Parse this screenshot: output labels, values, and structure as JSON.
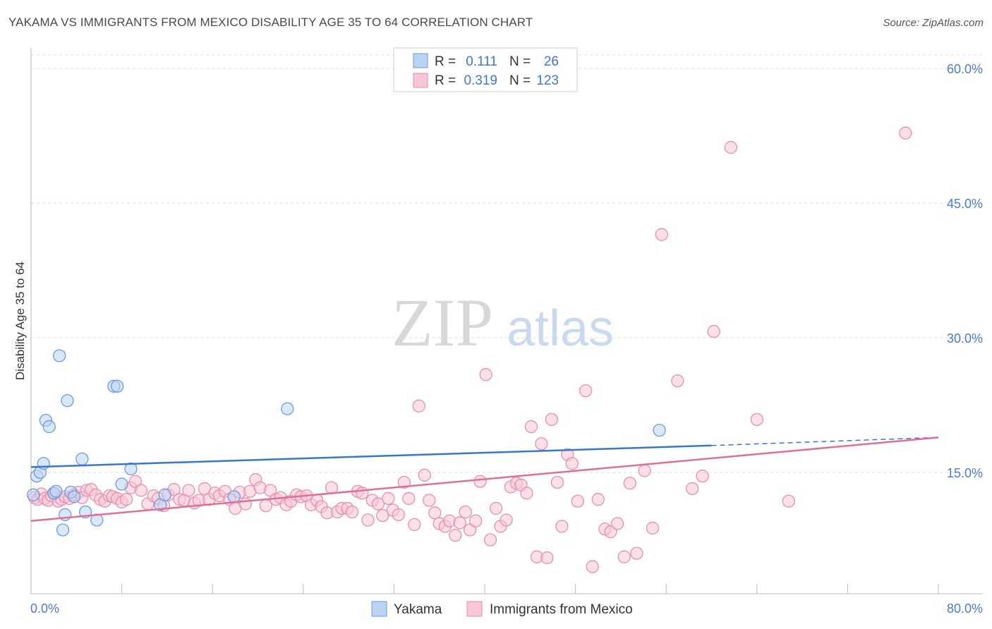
{
  "title": "YAKAMA VS IMMIGRANTS FROM MEXICO DISABILITY AGE 35 TO 64 CORRELATION CHART",
  "source": "Source: ZipAtlas.com",
  "watermark": {
    "zip": "ZIP",
    "atlas": "atlas"
  },
  "legend_top": [
    {
      "r_label": "R =",
      "r_value": "0.111",
      "n_label": "N =",
      "n_value": "26"
    },
    {
      "r_label": "R =",
      "r_value": "0.319",
      "n_label": "N =",
      "n_value": "123"
    }
  ],
  "legend_bottom": [
    "Yakama",
    "Immigrants from Mexico"
  ],
  "colors": {
    "yakama_fill": "#bcd4f4",
    "yakama_stroke": "#6d9bd8",
    "yakama_line": "#3a76cc",
    "mexico_fill": "#f8c6d6",
    "mexico_stroke": "#e58fae",
    "mexico_line": "#e06f97",
    "tick_label": "#4a7cc7",
    "grid": "#dddddd"
  },
  "chart_data": {
    "type": "scatter",
    "title": "YAKAMA VS IMMIGRANTS FROM MEXICO DISABILITY AGE 35 TO 64 CORRELATION CHART",
    "xlabel": "",
    "ylabel": "Disability Age 35 to 64",
    "xlim": [
      0,
      80
    ],
    "ylim": [
      0,
      61
    ],
    "x_tick_labels": [
      "0.0%",
      "80.0%"
    ],
    "y_ticks": [
      15,
      30,
      45,
      60
    ],
    "y_tick_labels": [
      "15.0%",
      "30.0%",
      "45.0%",
      "60.0%"
    ],
    "grid": true,
    "legend_position": "top-center",
    "series": [
      {
        "name": "Yakama",
        "r": 0.111,
        "n": 26,
        "trend": {
          "x0": 0,
          "y0": 15.6,
          "x1": 60,
          "y1": 18.0,
          "dashed_to_x": 80,
          "dashed_to_y": 18.9
        },
        "points": [
          [
            0.2,
            12.5
          ],
          [
            0.5,
            14.6
          ],
          [
            0.8,
            15.0
          ],
          [
            1.1,
            16.0
          ],
          [
            1.3,
            20.8
          ],
          [
            1.6,
            20.1
          ],
          [
            2.0,
            12.7
          ],
          [
            2.2,
            12.9
          ],
          [
            2.5,
            28.0
          ],
          [
            2.8,
            8.6
          ],
          [
            3.0,
            10.3
          ],
          [
            3.2,
            23.0
          ],
          [
            3.5,
            12.8
          ],
          [
            3.8,
            12.3
          ],
          [
            4.5,
            16.5
          ],
          [
            4.8,
            10.6
          ],
          [
            5.8,
            9.7
          ],
          [
            7.3,
            24.6
          ],
          [
            7.6,
            24.6
          ],
          [
            8.0,
            13.7
          ],
          [
            8.8,
            15.4
          ],
          [
            11.4,
            11.4
          ],
          [
            11.8,
            12.5
          ],
          [
            17.9,
            12.3
          ],
          [
            22.6,
            22.1
          ],
          [
            55.4,
            19.7
          ]
        ]
      },
      {
        "name": "Immigrants from Mexico",
        "r": 0.319,
        "n": 123,
        "trend": {
          "x0": 0,
          "y0": 9.6,
          "x1": 80,
          "y1": 18.9
        },
        "points": [
          [
            0.3,
            12.2
          ],
          [
            0.6,
            12.0
          ],
          [
            0.9,
            12.6
          ],
          [
            1.2,
            12.1
          ],
          [
            1.5,
            11.9
          ],
          [
            1.8,
            12.4
          ],
          [
            2.1,
            12.6
          ],
          [
            2.4,
            11.8
          ],
          [
            2.7,
            12.0
          ],
          [
            3.0,
            12.3
          ],
          [
            3.4,
            12.1
          ],
          [
            3.8,
            12.5
          ],
          [
            4.2,
            12.8
          ],
          [
            4.5,
            12.2
          ],
          [
            4.9,
            13.0
          ],
          [
            5.3,
            13.1
          ],
          [
            5.7,
            12.5
          ],
          [
            6.1,
            12.0
          ],
          [
            6.5,
            11.8
          ],
          [
            6.9,
            12.4
          ],
          [
            7.2,
            12.3
          ],
          [
            7.6,
            12.1
          ],
          [
            8.0,
            11.7
          ],
          [
            8.4,
            12.0
          ],
          [
            8.8,
            13.3
          ],
          [
            9.2,
            14.0
          ],
          [
            9.7,
            13.0
          ],
          [
            10.3,
            11.5
          ],
          [
            10.8,
            12.4
          ],
          [
            11.2,
            12.1
          ],
          [
            11.7,
            11.3
          ],
          [
            12.1,
            12.5
          ],
          [
            12.6,
            13.1
          ],
          [
            13.1,
            12.0
          ],
          [
            13.5,
            11.9
          ],
          [
            13.9,
            13.0
          ],
          [
            14.4,
            11.6
          ],
          [
            14.8,
            11.9
          ],
          [
            15.3,
            13.2
          ],
          [
            15.7,
            12.0
          ],
          [
            16.2,
            12.7
          ],
          [
            16.6,
            12.4
          ],
          [
            17.1,
            12.9
          ],
          [
            17.5,
            12.0
          ],
          [
            18.0,
            11.0
          ],
          [
            18.4,
            12.8
          ],
          [
            18.9,
            11.5
          ],
          [
            19.3,
            12.9
          ],
          [
            19.8,
            14.2
          ],
          [
            20.2,
            13.3
          ],
          [
            20.7,
            11.3
          ],
          [
            21.1,
            13.0
          ],
          [
            21.6,
            12.0
          ],
          [
            22.0,
            12.2
          ],
          [
            22.5,
            11.4
          ],
          [
            22.9,
            11.8
          ],
          [
            23.4,
            12.5
          ],
          [
            23.8,
            12.3
          ],
          [
            24.3,
            12.4
          ],
          [
            24.7,
            11.4
          ],
          [
            25.2,
            11.9
          ],
          [
            25.6,
            11.2
          ],
          [
            26.1,
            10.5
          ],
          [
            26.5,
            13.3
          ],
          [
            27.0,
            10.6
          ],
          [
            27.4,
            11.0
          ],
          [
            27.9,
            11.0
          ],
          [
            28.3,
            10.6
          ],
          [
            28.8,
            12.9
          ],
          [
            29.2,
            12.7
          ],
          [
            29.7,
            9.7
          ],
          [
            30.1,
            11.9
          ],
          [
            30.6,
            11.5
          ],
          [
            31.0,
            10.2
          ],
          [
            31.5,
            12.1
          ],
          [
            31.9,
            10.8
          ],
          [
            32.4,
            10.3
          ],
          [
            32.9,
            13.9
          ],
          [
            33.3,
            12.1
          ],
          [
            33.8,
            9.2
          ],
          [
            34.2,
            22.4
          ],
          [
            34.7,
            14.7
          ],
          [
            35.1,
            11.9
          ],
          [
            35.6,
            10.5
          ],
          [
            36.0,
            9.3
          ],
          [
            36.5,
            9.0
          ],
          [
            36.9,
            9.6
          ],
          [
            37.4,
            8.0
          ],
          [
            37.8,
            9.4
          ],
          [
            38.3,
            10.6
          ],
          [
            38.7,
            8.6
          ],
          [
            39.2,
            9.6
          ],
          [
            39.6,
            14.0
          ],
          [
            40.1,
            25.9
          ],
          [
            40.5,
            7.5
          ],
          [
            41.0,
            11.0
          ],
          [
            41.4,
            9.0
          ],
          [
            41.9,
            9.7
          ],
          [
            42.3,
            13.4
          ],
          [
            42.8,
            13.8
          ],
          [
            43.2,
            13.6
          ],
          [
            43.7,
            12.7
          ],
          [
            44.1,
            20.1
          ],
          [
            44.6,
            5.6
          ],
          [
            45.0,
            18.2
          ],
          [
            45.5,
            5.5
          ],
          [
            45.9,
            20.9
          ],
          [
            46.4,
            13.9
          ],
          [
            46.8,
            9.0
          ],
          [
            47.3,
            17.0
          ],
          [
            47.7,
            16.0
          ],
          [
            48.2,
            11.8
          ],
          [
            48.9,
            24.1
          ],
          [
            49.5,
            4.5
          ],
          [
            50.0,
            12.0
          ],
          [
            50.6,
            8.7
          ],
          [
            51.1,
            8.4
          ],
          [
            51.7,
            9.3
          ],
          [
            52.3,
            5.6
          ],
          [
            52.8,
            13.8
          ],
          [
            53.4,
            6.0
          ],
          [
            54.1,
            15.2
          ],
          [
            54.8,
            8.8
          ],
          [
            55.6,
            41.5
          ],
          [
            57.0,
            25.2
          ],
          [
            58.3,
            13.2
          ],
          [
            59.2,
            14.6
          ],
          [
            60.2,
            30.7
          ],
          [
            61.7,
            51.2
          ],
          [
            64.0,
            20.9
          ],
          [
            66.8,
            11.8
          ],
          [
            77.1,
            52.8
          ]
        ]
      }
    ]
  }
}
